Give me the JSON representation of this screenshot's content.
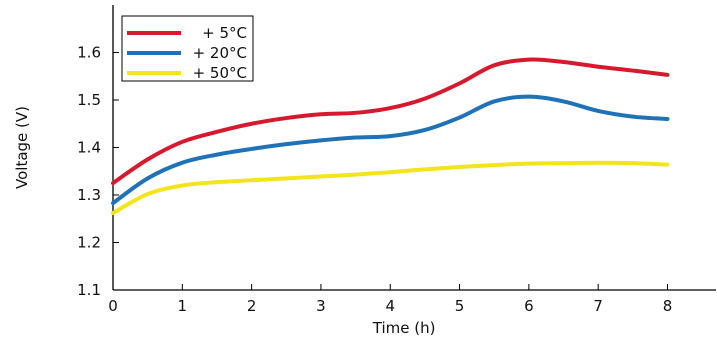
{
  "chart_data": {
    "type": "line",
    "title": "",
    "xlabel": "Time (h)",
    "ylabel": "Voltage (V)",
    "xlim": [
      0,
      8.7
    ],
    "ylim": [
      1.1,
      1.7
    ],
    "x_ticks": [
      0,
      1,
      2,
      3,
      4,
      5,
      6,
      7,
      8
    ],
    "y_ticks": [
      1.1,
      1.2,
      1.3,
      1.4,
      1.5,
      1.6
    ],
    "x_tick_labels": [
      "0",
      "1",
      "2",
      "3",
      "4",
      "5",
      "6",
      "7",
      "8"
    ],
    "y_tick_labels": [
      "1.1",
      "1.2",
      "1.3",
      "1.4",
      "1.5",
      "1.6"
    ],
    "grid": false,
    "legend_position": "top-left",
    "series": [
      {
        "name": "+ 5°C",
        "color": "#d7192d",
        "x": [
          0,
          0.5,
          1,
          1.5,
          2,
          2.5,
          3,
          3.5,
          4,
          4.5,
          5,
          5.5,
          6,
          6.5,
          7,
          7.5,
          8
        ],
        "values": [
          1.325,
          1.375,
          1.412,
          1.433,
          1.45,
          1.462,
          1.47,
          1.473,
          1.483,
          1.503,
          1.535,
          1.573,
          1.585,
          1.58,
          1.57,
          1.562,
          1.553
        ]
      },
      {
        "name": "+ 20°C",
        "color": "#1f72b8",
        "x": [
          0,
          0.5,
          1,
          1.5,
          2,
          2.5,
          3,
          3.5,
          4,
          4.5,
          5,
          5.5,
          6,
          6.5,
          7,
          7.5,
          8
        ],
        "values": [
          1.283,
          1.335,
          1.368,
          1.385,
          1.397,
          1.407,
          1.415,
          1.421,
          1.424,
          1.437,
          1.463,
          1.497,
          1.507,
          1.497,
          1.477,
          1.465,
          1.46
        ]
      },
      {
        "name": "+ 50°C",
        "color": "#f2e51c",
        "x": [
          0,
          0.5,
          1,
          1.5,
          2,
          2.5,
          3,
          3.5,
          4,
          4.5,
          5,
          5.5,
          6,
          6.5,
          7,
          7.5,
          8
        ],
        "values": [
          1.262,
          1.302,
          1.32,
          1.327,
          1.331,
          1.335,
          1.339,
          1.343,
          1.348,
          1.354,
          1.359,
          1.363,
          1.366,
          1.367,
          1.368,
          1.367,
          1.364
        ]
      }
    ]
  }
}
